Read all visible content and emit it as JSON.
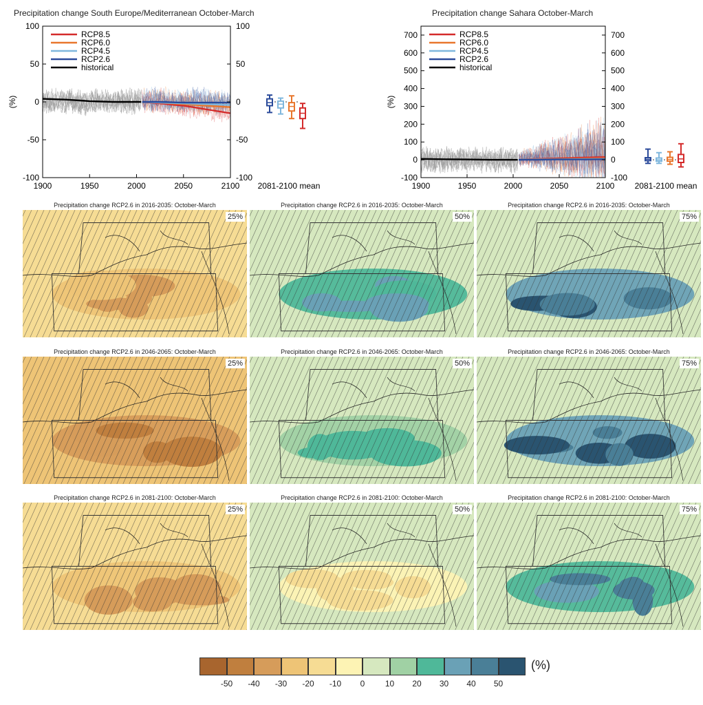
{
  "chart_data": [
    {
      "type": "line",
      "title": "Precipitation change South Europe/Mediterranean October-March",
      "ylabel": "(%)",
      "xlim": [
        1900,
        2100
      ],
      "ylim": [
        -100,
        100
      ],
      "xticks": [
        1900,
        1950,
        2000,
        2050,
        2100
      ],
      "yticks": [
        -100,
        -50,
        0,
        50,
        100
      ],
      "legend_position": "top-left",
      "series": [
        {
          "name": "RCP8.5",
          "color": "#d42a2a",
          "x": [
            2006,
            2025,
            2050,
            2075,
            2100
          ],
          "values": [
            0,
            -2,
            -5,
            -10,
            -15
          ]
        },
        {
          "name": "RCP6.0",
          "color": "#e8762c",
          "x": [
            2006,
            2025,
            2050,
            2075,
            2100
          ],
          "values": [
            0,
            -1,
            -3,
            -5,
            -7
          ]
        },
        {
          "name": "RCP4.5",
          "color": "#7fb7dd",
          "x": [
            2006,
            2025,
            2050,
            2075,
            2100
          ],
          "values": [
            0,
            -1,
            -2,
            -3,
            -4
          ]
        },
        {
          "name": "RCP2.6",
          "color": "#2a4a9a",
          "x": [
            2006,
            2025,
            2050,
            2075,
            2100
          ],
          "values": [
            0,
            0,
            -1,
            -1,
            -1
          ]
        },
        {
          "name": "historical",
          "color": "#000000",
          "x": [
            1900,
            1925,
            1950,
            1975,
            2005
          ],
          "values": [
            4,
            3,
            1,
            0,
            0
          ]
        }
      ],
      "boxplot_label": "2081-2100 mean",
      "boxplots": [
        {
          "name": "RCP2.6",
          "color": "#2a4a9a",
          "min": -14,
          "q1": -5,
          "median": -1,
          "q3": 4,
          "max": 9
        },
        {
          "name": "RCP4.5",
          "color": "#7fb7dd",
          "min": -16,
          "q1": -8,
          "median": -3,
          "q3": 1,
          "max": 5
        },
        {
          "name": "RCP6.0",
          "color": "#e8762c",
          "min": -22,
          "q1": -12,
          "median": -6,
          "q3": -1,
          "max": 8
        },
        {
          "name": "RCP8.5",
          "color": "#d42a2a",
          "min": -35,
          "q1": -22,
          "median": -15,
          "q3": -8,
          "max": -2
        }
      ]
    },
    {
      "type": "line",
      "title": "Precipitation change Sahara October-March",
      "ylabel": "(%)",
      "xlim": [
        1900,
        2100
      ],
      "ylim": [
        -100,
        750
      ],
      "xticks": [
        1900,
        1950,
        2000,
        2050,
        2100
      ],
      "yticks": [
        -100,
        0,
        100,
        200,
        300,
        400,
        500,
        600,
        700
      ],
      "legend_position": "top-left",
      "series": [
        {
          "name": "RCP8.5",
          "color": "#d42a2a",
          "x": [
            2006,
            2025,
            2050,
            2075,
            2100
          ],
          "values": [
            0,
            5,
            8,
            12,
            15
          ]
        },
        {
          "name": "RCP6.0",
          "color": "#e8762c",
          "x": [
            2006,
            2025,
            2050,
            2075,
            2100
          ],
          "values": [
            0,
            3,
            5,
            7,
            8
          ]
        },
        {
          "name": "RCP4.5",
          "color": "#7fb7dd",
          "x": [
            2006,
            2025,
            2050,
            2075,
            2100
          ],
          "values": [
            0,
            2,
            3,
            4,
            5
          ]
        },
        {
          "name": "RCP2.6",
          "color": "#2a4a9a",
          "x": [
            2006,
            2025,
            2050,
            2075,
            2100
          ],
          "values": [
            0,
            1,
            2,
            2,
            3
          ]
        },
        {
          "name": "historical",
          "color": "#000000",
          "x": [
            1900,
            1925,
            1950,
            1975,
            2005
          ],
          "values": [
            5,
            3,
            2,
            0,
            0
          ]
        }
      ],
      "boxplot_label": "2081-2100 mean",
      "boxplots": [
        {
          "name": "RCP2.6",
          "color": "#2a4a9a",
          "min": -20,
          "q1": -5,
          "median": 3,
          "q3": 12,
          "max": 60
        },
        {
          "name": "RCP4.5",
          "color": "#7fb7dd",
          "min": -20,
          "q1": -8,
          "median": 0,
          "q3": 10,
          "max": 40
        },
        {
          "name": "RCP6.0",
          "color": "#e8762c",
          "min": -25,
          "q1": -8,
          "median": 2,
          "q3": 14,
          "max": 45
        },
        {
          "name": "RCP8.5",
          "color": "#d42a2a",
          "min": -40,
          "q1": -15,
          "median": 5,
          "q3": 30,
          "max": 90
        }
      ]
    },
    {
      "type": "heatmap",
      "description_rows": [
        "2016-2035",
        "2046-2065",
        "2081-2100"
      ],
      "panels": [
        {
          "title": "Precipitation change RCP2.6 in 2016-2035: October-March",
          "percentile": "25%",
          "scenario": "RCP2.6",
          "period": "2016-2035",
          "low": -40,
          "background": -10
        },
        {
          "title": "Precipitation change RCP2.6 in 2016-2035: October-March",
          "percentile": "50%",
          "scenario": "RCP2.6",
          "period": "2016-2035",
          "low": 40,
          "background": 10
        },
        {
          "title": "Precipitation change RCP2.6 in 2016-2035: October-March",
          "percentile": "75%",
          "scenario": "RCP2.6",
          "period": "2016-2035",
          "low": 60,
          "background": 10
        },
        {
          "title": "Precipitation change RCP2.6 in 2046-2065: October-March",
          "percentile": "25%",
          "scenario": "RCP2.6",
          "period": "2046-2065",
          "low": -50,
          "background": -20
        },
        {
          "title": "Precipitation change RCP2.6 in 2046-2065: October-March",
          "percentile": "50%",
          "scenario": "RCP2.6",
          "period": "2046-2065",
          "low": 30,
          "background": 10
        },
        {
          "title": "Precipitation change RCP2.6 in 2046-2065: October-March",
          "percentile": "75%",
          "scenario": "RCP2.6",
          "period": "2046-2065",
          "low": 60,
          "background": 10
        },
        {
          "title": "Precipitation change RCP2.6 in 2081-2100: October-March",
          "percentile": "25%",
          "scenario": "RCP2.6",
          "period": "2081-2100",
          "low": -40,
          "background": -10
        },
        {
          "title": "Precipitation change RCP2.6 in 2081-2100: October-March",
          "percentile": "50%",
          "scenario": "RCP2.6",
          "period": "2081-2100",
          "low": -20,
          "background": 10
        },
        {
          "title": "Precipitation change RCP2.6 in 2081-2100: October-March",
          "percentile": "75%",
          "scenario": "RCP2.6",
          "period": "2081-2100",
          "low": 50,
          "background": 10
        }
      ],
      "colorbar": {
        "unit": "(%)",
        "ticks": [
          "-50",
          "-40",
          "-30",
          "-20",
          "-10",
          "0",
          "10",
          "20",
          "30",
          "40",
          "50"
        ],
        "colors": [
          "#a8652e",
          "#c07f3e",
          "#d69c5a",
          "#eec476",
          "#f6dc94",
          "#fdf3b4",
          "#d6e8bf",
          "#a0d1a4",
          "#4fb899",
          "#6aa1b6",
          "#4a7f97",
          "#2a5470"
        ]
      }
    }
  ]
}
